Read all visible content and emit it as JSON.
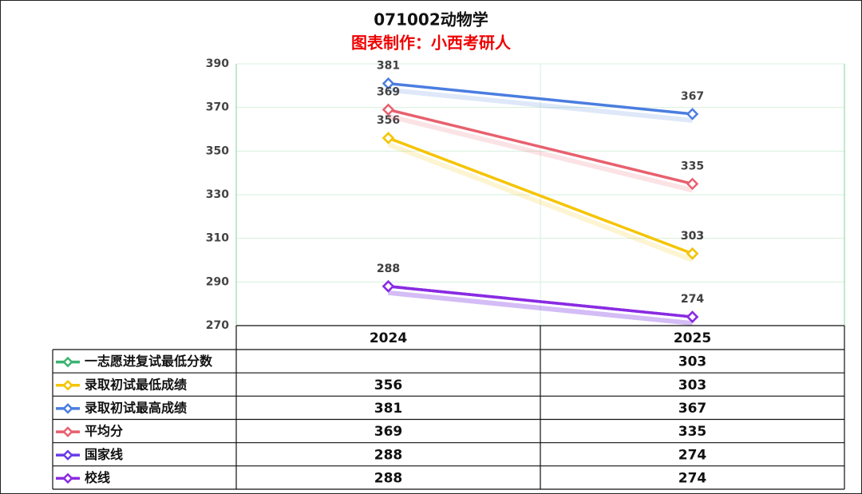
{
  "chart_data": {
    "type": "line",
    "title": "071002动物学",
    "subtitle": "图表制作：小西考研人",
    "categories": [
      "2024",
      "2025"
    ],
    "series": [
      {
        "name": "一志愿进复试最低分数",
        "color": "#3cb371",
        "values": [
          null,
          303
        ]
      },
      {
        "name": "录取初试最低成绩",
        "color": "#f5c400",
        "values": [
          356,
          303
        ]
      },
      {
        "name": "录取初试最高成绩",
        "color": "#4a7de0",
        "values": [
          381,
          367
        ]
      },
      {
        "name": "平均分",
        "color": "#e8606e",
        "values": [
          369,
          335
        ]
      },
      {
        "name": "国家线",
        "color": "#6a3de8",
        "values": [
          288,
          274
        ]
      },
      {
        "name": "校线",
        "color": "#8a2be2",
        "values": [
          288,
          274
        ]
      }
    ],
    "ylim": [
      270,
      390
    ],
    "yticks": [
      270,
      290,
      310,
      330,
      350,
      370,
      390
    ],
    "grid": true,
    "data_table": true
  }
}
